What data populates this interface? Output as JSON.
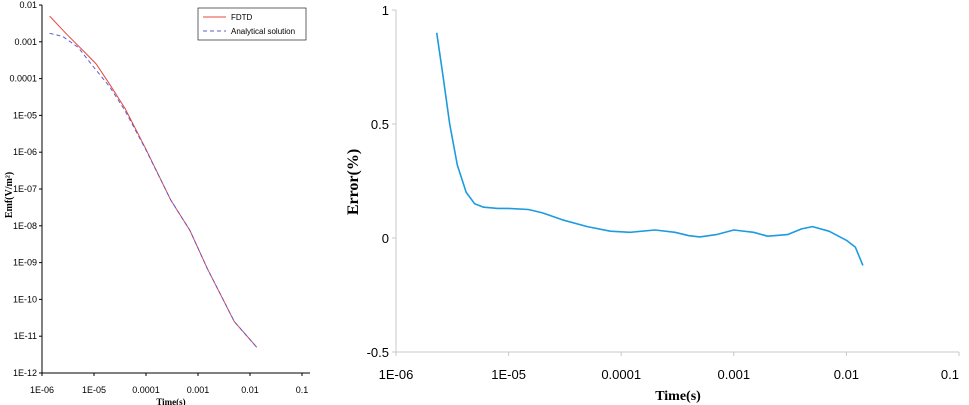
{
  "chart_data": [
    {
      "type": "line",
      "xlabel": "Time(s)",
      "ylabel": "Emf(V/m²)",
      "xscale": "log",
      "yscale": "log",
      "xlim": [
        1e-06,
        0.1
      ],
      "ylim": [
        1e-12,
        0.01
      ],
      "x_tick_labels": [
        "1E-06",
        "1E-05",
        "0.0001",
        "0.001",
        "0.01",
        "0.1"
      ],
      "y_tick_labels": [
        "1E-12",
        "1E-11",
        "1E-10",
        "1E-09",
        "1E-08",
        "1E-07",
        "1E-06",
        "1E-05",
        "0.0001",
        "0.001",
        "0.01"
      ],
      "legend_position": "top-right",
      "grid": false,
      "series": [
        {
          "name": "FDTD",
          "color": "#e8473f",
          "style": "solid",
          "x": [
            1.4e-06,
            3e-06,
            6e-06,
            1.1e-05,
            2e-05,
            4e-05,
            0.0001,
            0.0003,
            0.0007,
            0.0015,
            0.005,
            0.0135
          ],
          "y": [
            0.005,
            0.0016,
            0.0006,
            0.00025,
            7e-05,
            1.5e-05,
            1.2e-06,
            5e-08,
            7.5e-09,
            7e-10,
            2.5e-11,
            5e-12
          ]
        },
        {
          "name": "Analytical solution",
          "color": "#5b5fd6",
          "style": "dashed",
          "x": [
            1.4e-06,
            2.5e-06,
            5e-06,
            1e-05,
            2e-05,
            4e-05,
            0.0001,
            0.0003,
            0.0007,
            0.0015,
            0.005,
            0.0135
          ],
          "y": [
            0.0017,
            0.0014,
            0.0007,
            0.0002,
            6e-05,
            1.3e-05,
            1.15e-06,
            5e-08,
            7.5e-09,
            7e-10,
            2.5e-11,
            5e-12
          ]
        }
      ]
    },
    {
      "type": "line",
      "xlabel": "Time(s)",
      "ylabel": "Error(%)",
      "xscale": "log",
      "xlim": [
        1e-06,
        0.1
      ],
      "ylim": [
        -0.5,
        1
      ],
      "x_tick_labels": [
        "1E-06",
        "1E-05",
        "0.0001",
        "0.001",
        "0.01",
        "0.1"
      ],
      "y_tick_labels": [
        "-0.5",
        "0",
        "0.5",
        "1"
      ],
      "grid": false,
      "series": [
        {
          "color": "#1c9be0",
          "x": [
            2.3e-06,
            2.6e-06,
            3e-06,
            3.5e-06,
            4.2e-06,
            5e-06,
            6e-06,
            8e-06,
            1e-05,
            1.5e-05,
            2e-05,
            3e-05,
            5e-05,
            8e-05,
            0.00012,
            0.0002,
            0.0003,
            0.0004,
            0.0005,
            0.0007,
            0.001,
            0.0015,
            0.002,
            0.003,
            0.004,
            0.005,
            0.007,
            0.01,
            0.012,
            0.014
          ],
          "y": [
            0.9,
            0.72,
            0.5,
            0.32,
            0.2,
            0.15,
            0.135,
            0.13,
            0.13,
            0.125,
            0.11,
            0.08,
            0.05,
            0.03,
            0.025,
            0.035,
            0.025,
            0.01,
            0.005,
            0.015,
            0.035,
            0.025,
            0.008,
            0.015,
            0.04,
            0.05,
            0.03,
            -0.01,
            -0.04,
            -0.12
          ]
        }
      ]
    }
  ]
}
